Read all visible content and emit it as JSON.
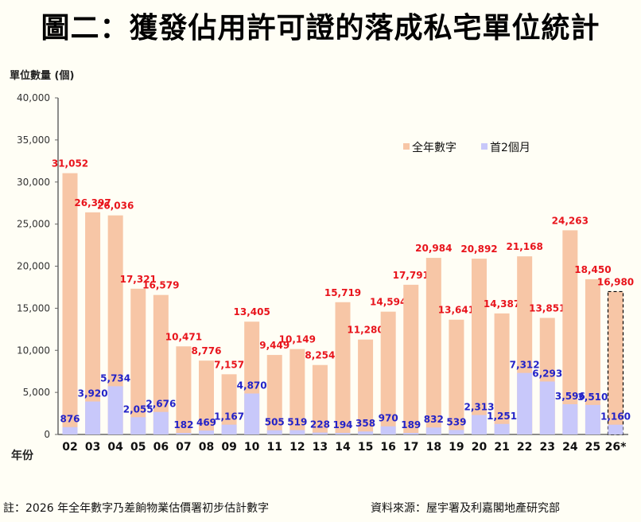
{
  "title": "圖二：獲發佔用許可證的落成私宅單位統計",
  "note": "註：2026 年全年數字乃差餉物業估價署初步估計數字",
  "source": "資料來源：屋宇署及利嘉閣地產研究部",
  "chart_data": {
    "type": "bar",
    "ylabel": "單位數量 (個)",
    "xlabel": "年份",
    "ylim": [
      0,
      40000
    ],
    "yticks": [
      "0",
      "5,000",
      "10,000",
      "15,000",
      "20,000",
      "25,000",
      "30,000",
      "35,000",
      "40,000"
    ],
    "ytick_values": [
      0,
      5000,
      10000,
      15000,
      20000,
      25000,
      30000,
      35000,
      40000
    ],
    "categories": [
      "02",
      "03",
      "04",
      "05",
      "06",
      "07",
      "08",
      "09",
      "10",
      "11",
      "12",
      "13",
      "14",
      "15",
      "16",
      "17",
      "18",
      "19",
      "20",
      "21",
      "22",
      "23",
      "24",
      "25",
      "26*"
    ],
    "estimated_category": "26*",
    "legend_position": "top-right",
    "grid": false,
    "series": [
      {
        "name": "全年數字",
        "color": "#f7c6a6",
        "label_color": "#e8141c",
        "values": [
          31052,
          26397,
          26036,
          17321,
          16579,
          10471,
          8776,
          7157,
          13405,
          9449,
          10149,
          8254,
          15719,
          11280,
          14594,
          17791,
          20984,
          13641,
          20892,
          14387,
          21168,
          13851,
          24263,
          18450,
          16980
        ]
      },
      {
        "name": "首2個月",
        "color": "#c8c8fa",
        "label_color": "#2323c8",
        "values": [
          876,
          3920,
          5734,
          2055,
          2676,
          182,
          469,
          1167,
          4870,
          505,
          519,
          228,
          194,
          358,
          970,
          189,
          832,
          539,
          2313,
          1251,
          7312,
          6293,
          3596,
          3510,
          1160
        ]
      }
    ]
  }
}
